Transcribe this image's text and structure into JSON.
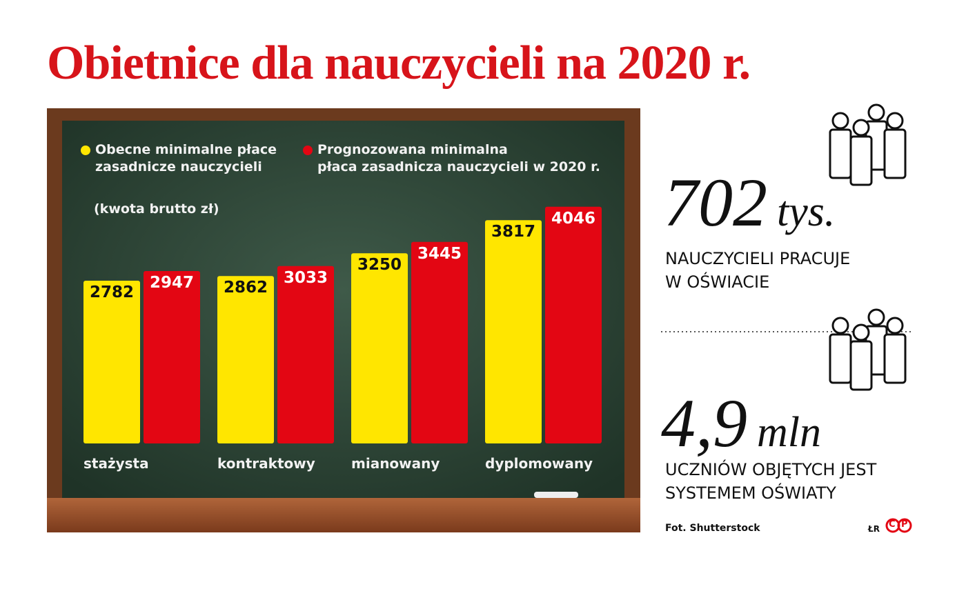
{
  "title": "Obietnice dla nauczycieli na 2020 r.",
  "chart_data": {
    "type": "bar",
    "subtitle": "(kwota brutto zł)",
    "categories": [
      "stażysta",
      "kontraktowy",
      "mianowany",
      "dyplomowany"
    ],
    "series": [
      {
        "name": "Obecne minimalne płace\nzasadnicze nauczycieli",
        "color": "#ffe600",
        "values": [
          2782,
          2862,
          3250,
          3817
        ]
      },
      {
        "name": "Prognozowana minimalna\npłaca zasadnicza nauczycieli w 2020 r.",
        "color": "#e30613",
        "values": [
          2947,
          3033,
          3445,
          4046
        ]
      }
    ]
  },
  "stats": [
    {
      "number": "702",
      "unit": "tys.",
      "label": "NAUCZYCIELI PRACUJE\nW OŚWIACIE"
    },
    {
      "number": "4,9",
      "unit": "mln",
      "label": "UCZNIÓW OBJĘTYCH JEST\nSYSTEMEM OŚWIATY"
    }
  ],
  "credit": "Fot. Shutterstock",
  "author": "ŁR",
  "logo": [
    "C",
    "P"
  ]
}
